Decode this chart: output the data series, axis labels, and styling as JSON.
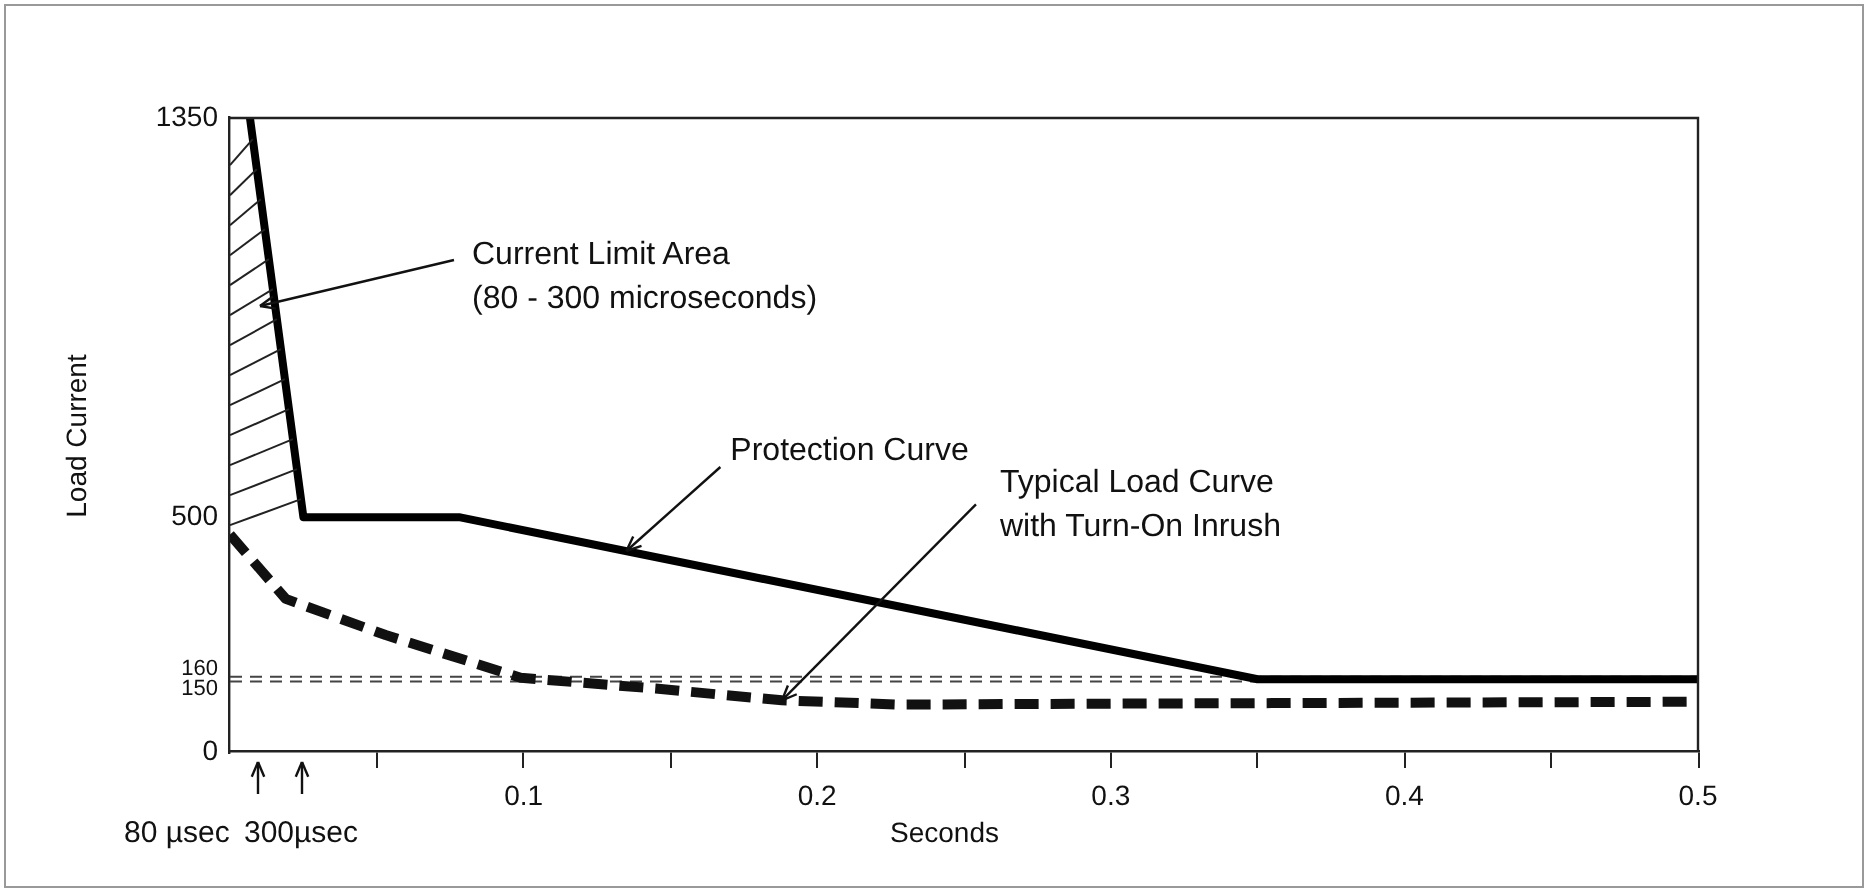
{
  "chart_data": {
    "type": "line",
    "xlabel": "Seconds",
    "ylabel": "Load Current",
    "xlim": [
      0,
      0.5
    ],
    "xticks": [
      {
        "value": 0.05,
        "label": null
      },
      0.1,
      {
        "value": 0.15,
        "label": null
      },
      0.2,
      {
        "value": 0.25,
        "label": null
      },
      0.3,
      {
        "value": 0.35,
        "label": null
      },
      0.4,
      {
        "value": 0.45,
        "label": null
      },
      0.5
    ],
    "ylim": [
      0,
      1350
    ],
    "yticks": [
      0,
      150,
      160,
      500,
      1350
    ],
    "grid": false,
    "legend": false,
    "marker": "none",
    "series": [
      {
        "color": "#000000",
        "line_style": "solid",
        "x": [
          0.0068,
          0.025,
          0.078,
          0.35,
          0.5
        ],
        "values": [
          1350,
          500,
          500,
          155,
          155
        ]
      },
      {
        "color": "#111111",
        "line_style": "dashed",
        "x": [
          0,
          0.019,
          0.053,
          0.099,
          0.145,
          0.188,
          0.228,
          0.3,
          0.4,
          0.5
        ],
        "values": [
          463,
          326,
          249,
          158,
          135,
          110,
          101,
          103,
          105,
          107
        ]
      }
    ],
    "ref_lines": [
      {
        "axis": "y",
        "value": 160,
        "color": "#444444",
        "line_style": "dashed"
      },
      {
        "axis": "y",
        "value": 150,
        "color": "#444444",
        "line_style": "dashed"
      }
    ],
    "annotations": [
      "Current Limit Area\n(80 - 300 microseconds)",
      {
        "text": "Protection Curve",
        "x": 0.135,
        "y": 428
      },
      {
        "text": "Typical Load Curve\nwith Turn-On Inrush",
        "x": 0.188,
        "y": 110
      },
      "80 µsec",
      "300µsec"
    ]
  }
}
